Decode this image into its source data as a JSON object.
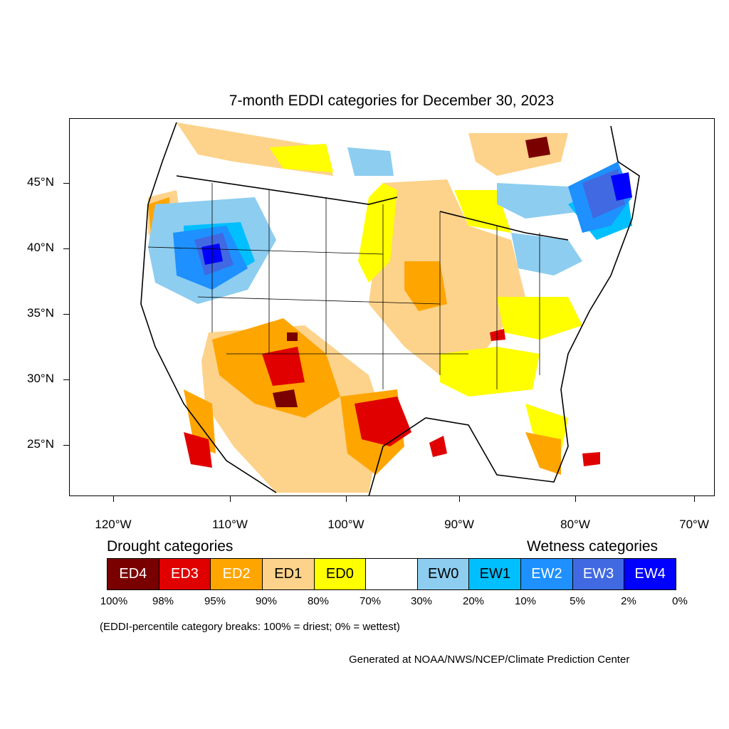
{
  "title": "7-month EDDI categories for December 30, 2023",
  "latitude_labels": [
    "45°N",
    "40°N",
    "35°N",
    "30°N",
    "25°N"
  ],
  "longitude_labels": [
    "120°W",
    "110°W",
    "100°W",
    "90°W",
    "80°W",
    "70°W"
  ],
  "legend": {
    "drought_heading": "Drought categories",
    "wetness_heading": "Wetness categories",
    "categories": [
      {
        "label": "ED4",
        "color": "#7a0000",
        "text_color": "#ffffff"
      },
      {
        "label": "ED3",
        "color": "#e00000",
        "text_color": "#ffffff"
      },
      {
        "label": "ED2",
        "color": "#ffa500",
        "text_color": "#ffffff"
      },
      {
        "label": "ED1",
        "color": "#fdd28a",
        "text_color": "#000000"
      },
      {
        "label": "ED0",
        "color": "#ffff00",
        "text_color": "#000000"
      },
      {
        "label": "",
        "color": "#ffffff",
        "text_color": "#000000"
      },
      {
        "label": "EW0",
        "color": "#8dcdf0",
        "text_color": "#000000"
      },
      {
        "label": "EW1",
        "color": "#00bfff",
        "text_color": "#000000"
      },
      {
        "label": "EW2",
        "color": "#1e90ff",
        "text_color": "#ffffff"
      },
      {
        "label": "EW3",
        "color": "#4169e1",
        "text_color": "#ffffff"
      },
      {
        "label": "EW4",
        "color": "#0000ff",
        "text_color": "#ffffff"
      }
    ],
    "breaks": [
      "100%",
      "98%",
      "95%",
      "90%",
      "80%",
      "70%",
      "30%",
      "20%",
      "10%",
      "5%",
      "2%",
      "0%"
    ]
  },
  "note": "(EDDI-percentile category breaks: 100% = driest; 0% = wettest)",
  "credit": "Generated at NOAA/NWS/NCEP/Climate Prediction Center"
}
